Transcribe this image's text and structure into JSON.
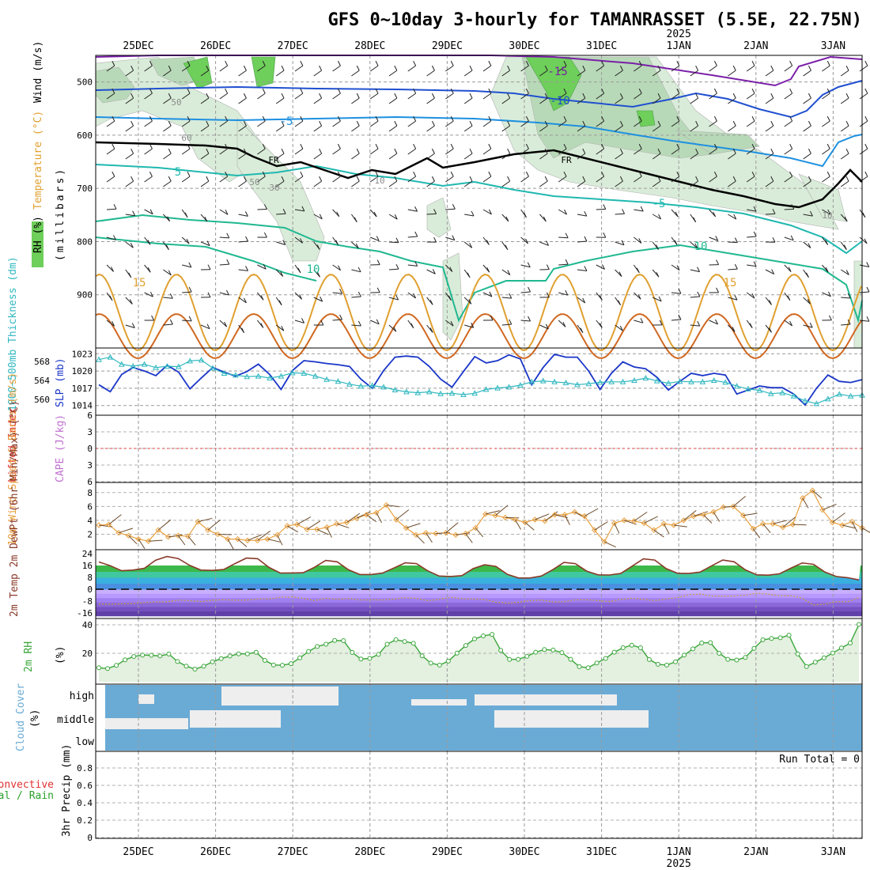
{
  "title": "GFS 0~10day 3-hourly for TAMANRASSET (5.5E, 22.75N)",
  "dates": [
    "25DEC",
    "26DEC",
    "27DEC",
    "28DEC",
    "29DEC",
    "30DEC",
    "31DEC",
    "1JAN",
    "2JAN",
    "3JAN"
  ],
  "year_label": "2025",
  "run_total_label": "Run Total = 0",
  "colors": {
    "rh_fill": "#d9ecd9",
    "rh_fill2": "#b8d9b8",
    "rh_green": "#6ecf5a",
    "temp_m15": "#7a1fa8",
    "temp_m10": "#2050d0",
    "temp_m5": "#1e90e0",
    "temp_5": "#20b8b0",
    "temp_10": "#20b890",
    "temp_15": "#e0a030",
    "temp_20": "#d06820",
    "slp": "#1a36c8",
    "thick": "#30b8c0",
    "wind10": "#e8a040",
    "rh2m": "#3aa63a",
    "cloud": "#6aabd6",
    "precip_rain": "#2ca02c",
    "precip_conv": "#e03030"
  },
  "chart_data": [
    {
      "type": "area",
      "name_panel": "cross-section",
      "ylabel_parts": [
        "RH (%)",
        "Temperature (°C)",
        "Wind (m/s)",
        "(millibars)"
      ],
      "y_ticks": [
        500,
        600,
        700,
        800,
        900
      ],
      "ylim": [
        1000,
        450
      ],
      "temperature_contours": [
        -15,
        -10,
        -5,
        5,
        10,
        15,
        20
      ],
      "contour_labels": [
        "-15",
        "-10",
        "-5",
        "5",
        "-5",
        "10",
        "10",
        "15",
        "15"
      ],
      "rh_labels": [
        "50",
        "60",
        "50",
        "30",
        "10",
        "10"
      ],
      "freezing_label": "FR"
    },
    {
      "type": "line",
      "name_panel": "slp-thickness",
      "ylabel_left": "1000~500mb Thickness (dm)",
      "ylabel_right": "SLP (mb)",
      "left_ticks": [
        560,
        564,
        568
      ],
      "right_ticks": [
        1014,
        1017,
        1020,
        1023
      ],
      "series": [
        {
          "name": "SLP (mb)",
          "values": [
            1017.6,
            1016.4,
            1019.4,
            1020.6,
            1020.0,
            1019.2,
            1021.0,
            1019.8,
            1016.9,
            1018.8,
            1020.6,
            1019.8,
            1019.1,
            1019.9,
            1021.2,
            1019.4,
            1016.8,
            1020.1,
            1021.8,
            1021.6,
            1021.3,
            1021.1,
            1020.8,
            1018.6,
            1017.0,
            1020.1,
            1022.4,
            1022.6,
            1022.4,
            1020.8,
            1018.6,
            1017.2,
            1019.9,
            1022.5,
            1021.4,
            1021.8,
            1022.8,
            1022.1,
            1017.6,
            1020.6,
            1022.9,
            1022.4,
            1022.4,
            1020.0,
            1016.8,
            1019.6,
            1021.6,
            1020.7,
            1020.4,
            1018.9,
            1016.7,
            1018.2,
            1019.6,
            1019.2,
            1019.6,
            1019.3,
            1016.0,
            1016.7,
            1017.4,
            1017.1,
            1017.1,
            1016.0,
            1014.1,
            1017.0,
            1019.3,
            1018.2,
            1018.0,
            1018.5
          ]
        },
        {
          "name": "1000~500mb Thickness (dm)",
          "values": [
            568.4,
            568.9,
            567.4,
            567.0,
            567.4,
            566.7,
            567.0,
            566.9,
            568.1,
            568.3,
            566.6,
            565.5,
            565.1,
            564.8,
            564.9,
            564.5,
            564.9,
            565.6,
            565.5,
            564.9,
            564.2,
            563.8,
            563.2,
            562.8,
            562.9,
            562.6,
            562.0,
            561.6,
            561.4,
            561.6,
            561.2,
            561.3,
            561.0,
            561.3,
            562.1,
            562.4,
            562.6,
            563.0,
            563.7,
            563.9,
            563.7,
            563.5,
            563.1,
            563.3,
            563.6,
            563.7,
            563.7,
            564.0,
            564.5,
            563.9,
            563.4,
            563.8,
            563.7,
            563.7,
            564.0,
            563.6,
            562.8,
            562.2,
            561.9,
            561.2,
            561.4,
            560.7,
            559.7,
            559.1,
            560.1,
            561.1,
            560.7,
            560.9
          ]
        }
      ]
    },
    {
      "type": "line",
      "name_panel": "stability",
      "ylabel": "Lifted Index",
      "ylabel_right": "CAPE (J/kg)",
      "y_ticks": [
        -6,
        -3,
        0,
        3,
        6
      ],
      "y_tick_labels": [
        "6",
        "3",
        "0",
        "3",
        "6"
      ],
      "series": []
    },
    {
      "type": "line",
      "name_panel": "10m-wind",
      "ylabel": "10m Wind Speed & Barbs (m/s)",
      "y_ticks": [
        2,
        4,
        6,
        8
      ],
      "series": [
        {
          "name": "10m Wind Speed",
          "values": [
            3.3,
            3.4,
            2.2,
            1.8,
            1.3,
            1.0,
            2.6,
            1.6,
            1.8,
            1.7,
            3.8,
            2.6,
            2.0,
            1.3,
            1.3,
            1.1,
            1.1,
            1.3,
            1.9,
            3.2,
            3.4,
            2.7,
            2.7,
            3.0,
            3.5,
            3.7,
            4.3,
            4.8,
            5.1,
            6.2,
            4.1,
            2.9,
            1.9,
            2.2,
            2.1,
            2.2,
            1.9,
            2.1,
            2.9,
            4.9,
            4.7,
            4.4,
            4.1,
            3.7,
            4.1,
            3.9,
            4.8,
            4.8,
            5.2,
            4.6,
            2.6,
            0.9,
            3.6,
            4.0,
            3.9,
            3.6,
            2.6,
            3.5,
            3.3,
            4.0,
            4.6,
            4.8,
            5.2,
            5.9,
            6.0,
            4.7,
            2.8,
            3.5,
            3.5,
            3.0,
            3.4,
            7.2,
            8.3,
            5.5,
            3.7,
            3.3,
            3.8,
            2.9
          ]
        }
      ]
    },
    {
      "type": "area",
      "name_panel": "2m-temp",
      "ylabel": "2m Temp 2m DewPt (6hr Min/Max) (°C)",
      "y_ticks": [
        -16,
        -8,
        0,
        8,
        16,
        24
      ],
      "series": [
        {
          "name": "2m Temp",
          "values": [
            18.4,
            15.9,
            12.5,
            12.9,
            14.1,
            19.5,
            22.1,
            20.7,
            16.1,
            12.9,
            12.7,
            13.3,
            17.3,
            21.0,
            20.6,
            14.7,
            10.9,
            11.0,
            11.1,
            14.8,
            19.4,
            18.5,
            13.1,
            9.9,
            9.9,
            10.9,
            14.3,
            17.8,
            17.3,
            12.4,
            8.9,
            8.6,
            9.2,
            13.9,
            16.5,
            15.4,
            10.1,
            7.6,
            7.6,
            8.9,
            13.1,
            18.1,
            17.3,
            12.2,
            9.7,
            9.6,
            10.6,
            15.5,
            20.5,
            19.7,
            13.9,
            10.8,
            10.6,
            11.6,
            15.7,
            19.7,
            18.5,
            13.0,
            9.7,
            9.5,
            10.4,
            14.2,
            17.7,
            16.8,
            11.6,
            8.6,
            7.8,
            6.3
          ]
        },
        {
          "name": "2m DewPt",
          "values": [
            -9.9,
            -10.2,
            -9.8,
            -9.7,
            -9.0,
            -8.6,
            -8.5,
            -7.3,
            -7.6,
            -8.3,
            -7.4,
            -7.0,
            -7.4,
            -7.3,
            -6.5,
            -6.6,
            -5.4,
            -5.3,
            -6.1,
            -7.6,
            -6.1,
            -6.7,
            -6.2,
            -7.2,
            -7.1,
            -7.2,
            -6.6,
            -5.7,
            -6.2,
            -7.7,
            -6.8,
            -5.4,
            -6.4,
            -6.6,
            -6.9,
            -8.7,
            -9.5,
            -8.8,
            -7.6,
            -7.3,
            -8.6,
            -8.5,
            -7.1,
            -7.1,
            -7.6,
            -8.3,
            -6.8,
            -6.1,
            -6.8,
            -7.7,
            -6.5,
            -5.7,
            -3.7,
            -3.2,
            -4.6,
            -4.7,
            -4.6,
            -4.0,
            -2.6,
            -3.3,
            -4.3,
            -4.3,
            -6.1,
            -10.6,
            -10.1,
            -8.4,
            -8.4,
            -5.7
          ]
        }
      ]
    },
    {
      "type": "line",
      "name_panel": "2m-rh",
      "ylabel": "2m RH (%)",
      "y_ticks": [
        20,
        40
      ],
      "series": [
        {
          "name": "2m RH",
          "values": [
            9.9,
            9.3,
            11.5,
            15.4,
            17.8,
            18.8,
            18.6,
            18.1,
            19.5,
            14.2,
            11.0,
            8.9,
            10.9,
            14.0,
            16.3,
            18.1,
            19.6,
            19.6,
            20.7,
            15.0,
            11.8,
            11.6,
            12.7,
            16.8,
            21.3,
            24.8,
            26.4,
            29.0,
            28.9,
            20.6,
            16.0,
            16.4,
            19.2,
            26.4,
            29.6,
            28.3,
            27.0,
            18.2,
            13.1,
            11.7,
            14.5,
            20.1,
            25.5,
            30.1,
            32.2,
            33.3,
            22.1,
            15.7,
            15.8,
            17.9,
            20.8,
            22.6,
            22.3,
            20.5,
            15.8,
            10.6,
            9.9,
            13.2,
            16.4,
            20.8,
            23.9,
            25.7,
            23.9,
            15.6,
            12.3,
            11.7,
            14.0,
            18.7,
            23.1,
            27.3,
            27.5,
            20.0,
            15.8,
            15.3,
            17.1,
            23.5,
            29.5,
            30.4,
            30.9,
            32.7,
            19.5,
            10.7,
            13.7,
            16.8,
            20.2,
            23.7,
            27.2,
            40.3
          ]
        }
      ]
    },
    {
      "type": "area",
      "name_panel": "cloud-cover",
      "ylabel": "Cloud Cover (%)",
      "y_tick_labels": [
        "high",
        "middle",
        "low"
      ]
    },
    {
      "type": "bar",
      "name_panel": "precip",
      "ylabel_parts": [
        "Total / Rain",
        "Convective",
        "3hr Precip (mm)"
      ],
      "y_ticks": [
        0,
        0.2,
        0.4,
        0.6,
        0.8
      ],
      "y_tick_labels": [
        "0",
        "0.2",
        "0.4",
        "0.6",
        "0.8"
      ],
      "values": []
    }
  ]
}
